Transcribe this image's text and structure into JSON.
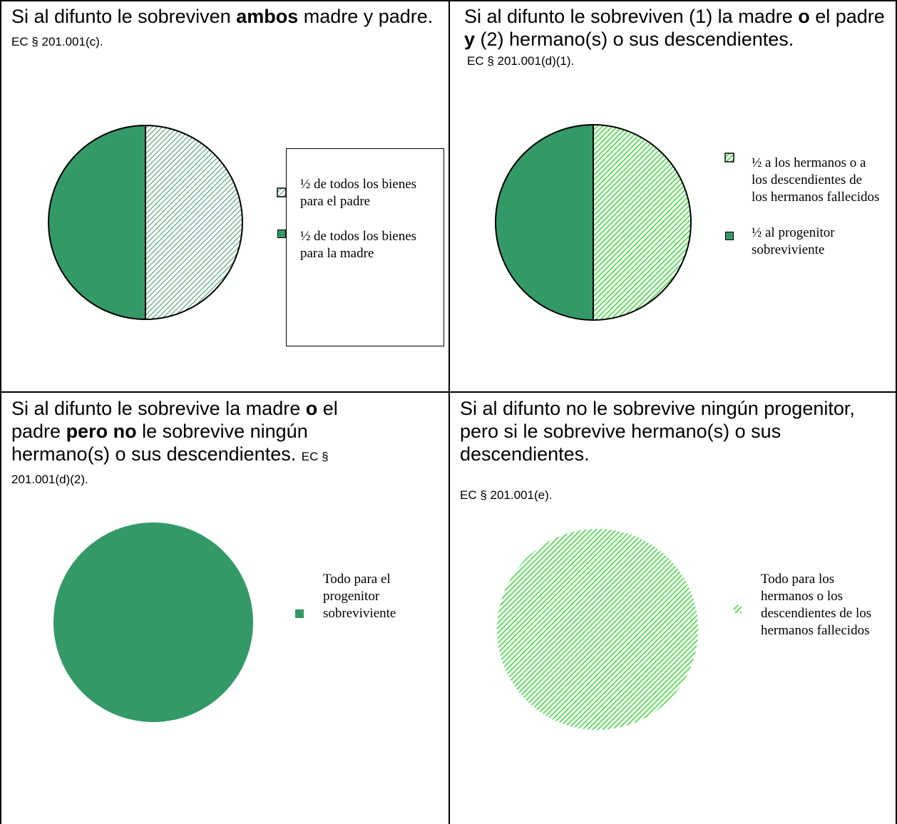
{
  "colors": {
    "dark_green": "#339966",
    "light_green": "#66FF66",
    "hatch_dark": "#339966",
    "hatch_light_bg": "#ffffff",
    "border": "#000000"
  },
  "panels": [
    {
      "heading_parts": [
        "Si al difunto le sobreviven ",
        "ambos",
        " madre y padre."
      ],
      "citation": "EC § 201.001(c)."
    },
    {
      "heading_parts": [
        "Si al difunto le sobreviven (1) la madre ",
        "o",
        " el padre ",
        "y",
        "  (2) hermano(s) o sus descendientes."
      ],
      "citation": "EC § 201.001(d)(1)."
    },
    {
      "heading_parts": [
        "Si al difunto le sobrevive la madre ",
        "o",
        " el padre ",
        "pero no",
        " le sobrevive ningún hermano(s) o sus descendientes."
      ],
      "citation": "EC § 201.001(d)(2)."
    },
    {
      "heading_parts": [
        "Si al difunto no le sobrevive ningún progenitor, pero si le sobrevive hermano(s) o sus descendientes."
      ],
      "citation": "EC § 201.001(e)."
    }
  ],
  "chart_data": [
    {
      "type": "pie",
      "slices": [
        {
          "label": "½ de todos los bienes para el padre",
          "value": 50,
          "fill": "hatch-white"
        },
        {
          "label": "½ de todos los bienes para la madre",
          "value": 50,
          "fill": "#339966"
        }
      ]
    },
    {
      "type": "pie",
      "slices": [
        {
          "label": "½ a los hermanos o a los descendientes de los hermanos fallecidos",
          "value": 50,
          "fill": "hatch-light-green"
        },
        {
          "label": "½ al progenitor sobreviviente",
          "value": 50,
          "fill": "#339966"
        }
      ]
    },
    {
      "type": "pie",
      "slices": [
        {
          "label": "Todo para el progenitor sobreviviente",
          "value": 100,
          "fill": "#339966"
        }
      ]
    },
    {
      "type": "pie",
      "slices": [
        {
          "label": "Todo para los hermanos o los descendientes de los hermanos fallecidos",
          "value": 100,
          "fill": "hatch-light-green"
        }
      ]
    }
  ]
}
